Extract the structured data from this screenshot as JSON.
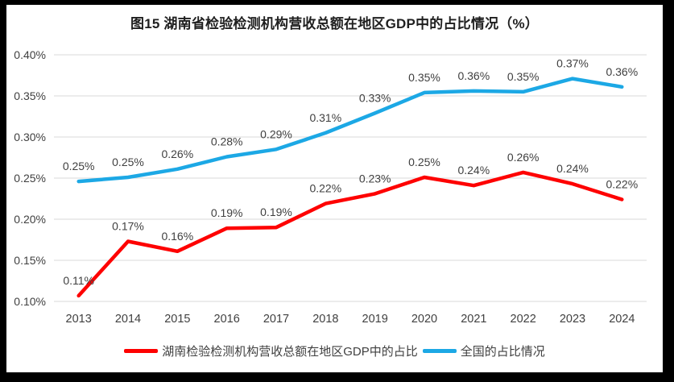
{
  "title": "图15 湖南省检验检测机构营收总额在地区GDP中的占比情况（%）",
  "colors": {
    "frame": "#000000",
    "background": "#ffffff",
    "gridline": "#d9d9d9",
    "tick_text": "#404040",
    "label_text": "#3f3f3f",
    "hunan_red": "#fe0000",
    "national_blue": "#1ca8e5"
  },
  "chart_data": {
    "type": "line",
    "title": "图15 湖南省检验检测机构营收总额在地区GDP中的占比情况（%）",
    "x": [
      "2013",
      "2014",
      "2015",
      "2016",
      "2017",
      "2018",
      "2019",
      "2020",
      "2021",
      "2022",
      "2023",
      "2024"
    ],
    "series": [
      {
        "name": "湖南检验检测机构营收总额在地区GDP中的占比",
        "color": "#fe0000",
        "values": [
          0.107,
          0.173,
          0.161,
          0.189,
          0.19,
          0.219,
          0.231,
          0.251,
          0.241,
          0.257,
          0.243,
          0.224
        ],
        "labels": [
          "0.11%",
          "0.17%",
          "0.16%",
          "0.19%",
          "0.19%",
          "0.22%",
          "0.23%",
          "0.25%",
          "0.24%",
          "0.26%",
          "0.24%",
          "0.22%"
        ]
      },
      {
        "name": "全国的占比情况",
        "color": "#1ca8e5",
        "values": [
          0.246,
          0.251,
          0.261,
          0.276,
          0.285,
          0.305,
          0.329,
          0.354,
          0.356,
          0.355,
          0.371,
          0.361
        ],
        "labels": [
          "0.25%",
          "0.25%",
          "0.26%",
          "0.28%",
          "0.29%",
          "0.31%",
          "0.33%",
          "0.35%",
          "0.36%",
          "0.35%",
          "0.37%",
          "0.36%"
        ]
      }
    ],
    "y_axis": {
      "min": 0.1,
      "max": 0.4,
      "step": 0.05,
      "tick_labels": [
        "0.10%",
        "0.15%",
        "0.20%",
        "0.25%",
        "0.30%",
        "0.35%",
        "0.40%"
      ],
      "unit": "%"
    },
    "x_axis_label": "",
    "grid": true,
    "legend_position": "bottom"
  }
}
